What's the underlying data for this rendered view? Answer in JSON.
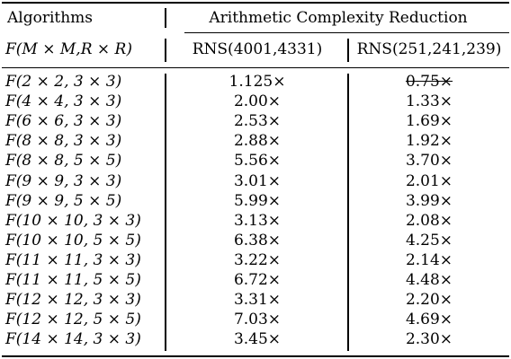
{
  "header": {
    "algorithms": "Algorithms",
    "group": "Arithmetic Complexity Reduction",
    "param": "F(M × M,R × R)",
    "col1": "RNS(4001,4331)",
    "col2": "RNS(251,241,239)"
  },
  "rows": [
    {
      "algo": "F(2 × 2, 3 × 3)",
      "v1": "1.125×",
      "v2": "0.75×",
      "v2_struck": true
    },
    {
      "algo": "F(4 × 4, 3 × 3)",
      "v1": "2.00×",
      "v2": "1.33×"
    },
    {
      "algo": "F(6 × 6, 3 × 3)",
      "v1": "2.53×",
      "v2": "1.69×"
    },
    {
      "algo": "F(8 × 8, 3 × 3)",
      "v1": "2.88×",
      "v2": "1.92×"
    },
    {
      "algo": "F(8 × 8, 5 × 5)",
      "v1": "5.56×",
      "v2": "3.70×"
    },
    {
      "algo": "F(9 × 9, 3 × 3)",
      "v1": "3.01×",
      "v2": "2.01×"
    },
    {
      "algo": "F(9 × 9, 5 × 5)",
      "v1": "5.99×",
      "v2": "3.99×"
    },
    {
      "algo": "F(10 × 10, 3 × 3)",
      "v1": "3.13×",
      "v2": "2.08×"
    },
    {
      "algo": "F(10 × 10, 5 × 5)",
      "v1": "6.38×",
      "v2": "4.25×"
    },
    {
      "algo": "F(11 × 11, 3 × 3)",
      "v1": "3.22×",
      "v2": "2.14×"
    },
    {
      "algo": "F(11 × 11, 5 × 5)",
      "v1": "6.72×",
      "v2": "4.48×"
    },
    {
      "algo": "F(12 × 12, 3 × 3)",
      "v1": "3.31×",
      "v2": "2.20×"
    },
    {
      "algo": "F(12 × 12, 5 × 5)",
      "v1": "7.03×",
      "v2": "4.69×"
    },
    {
      "algo": "F(14 × 14, 3 × 3)",
      "v1": "3.45×",
      "v2": "2.30×"
    }
  ]
}
